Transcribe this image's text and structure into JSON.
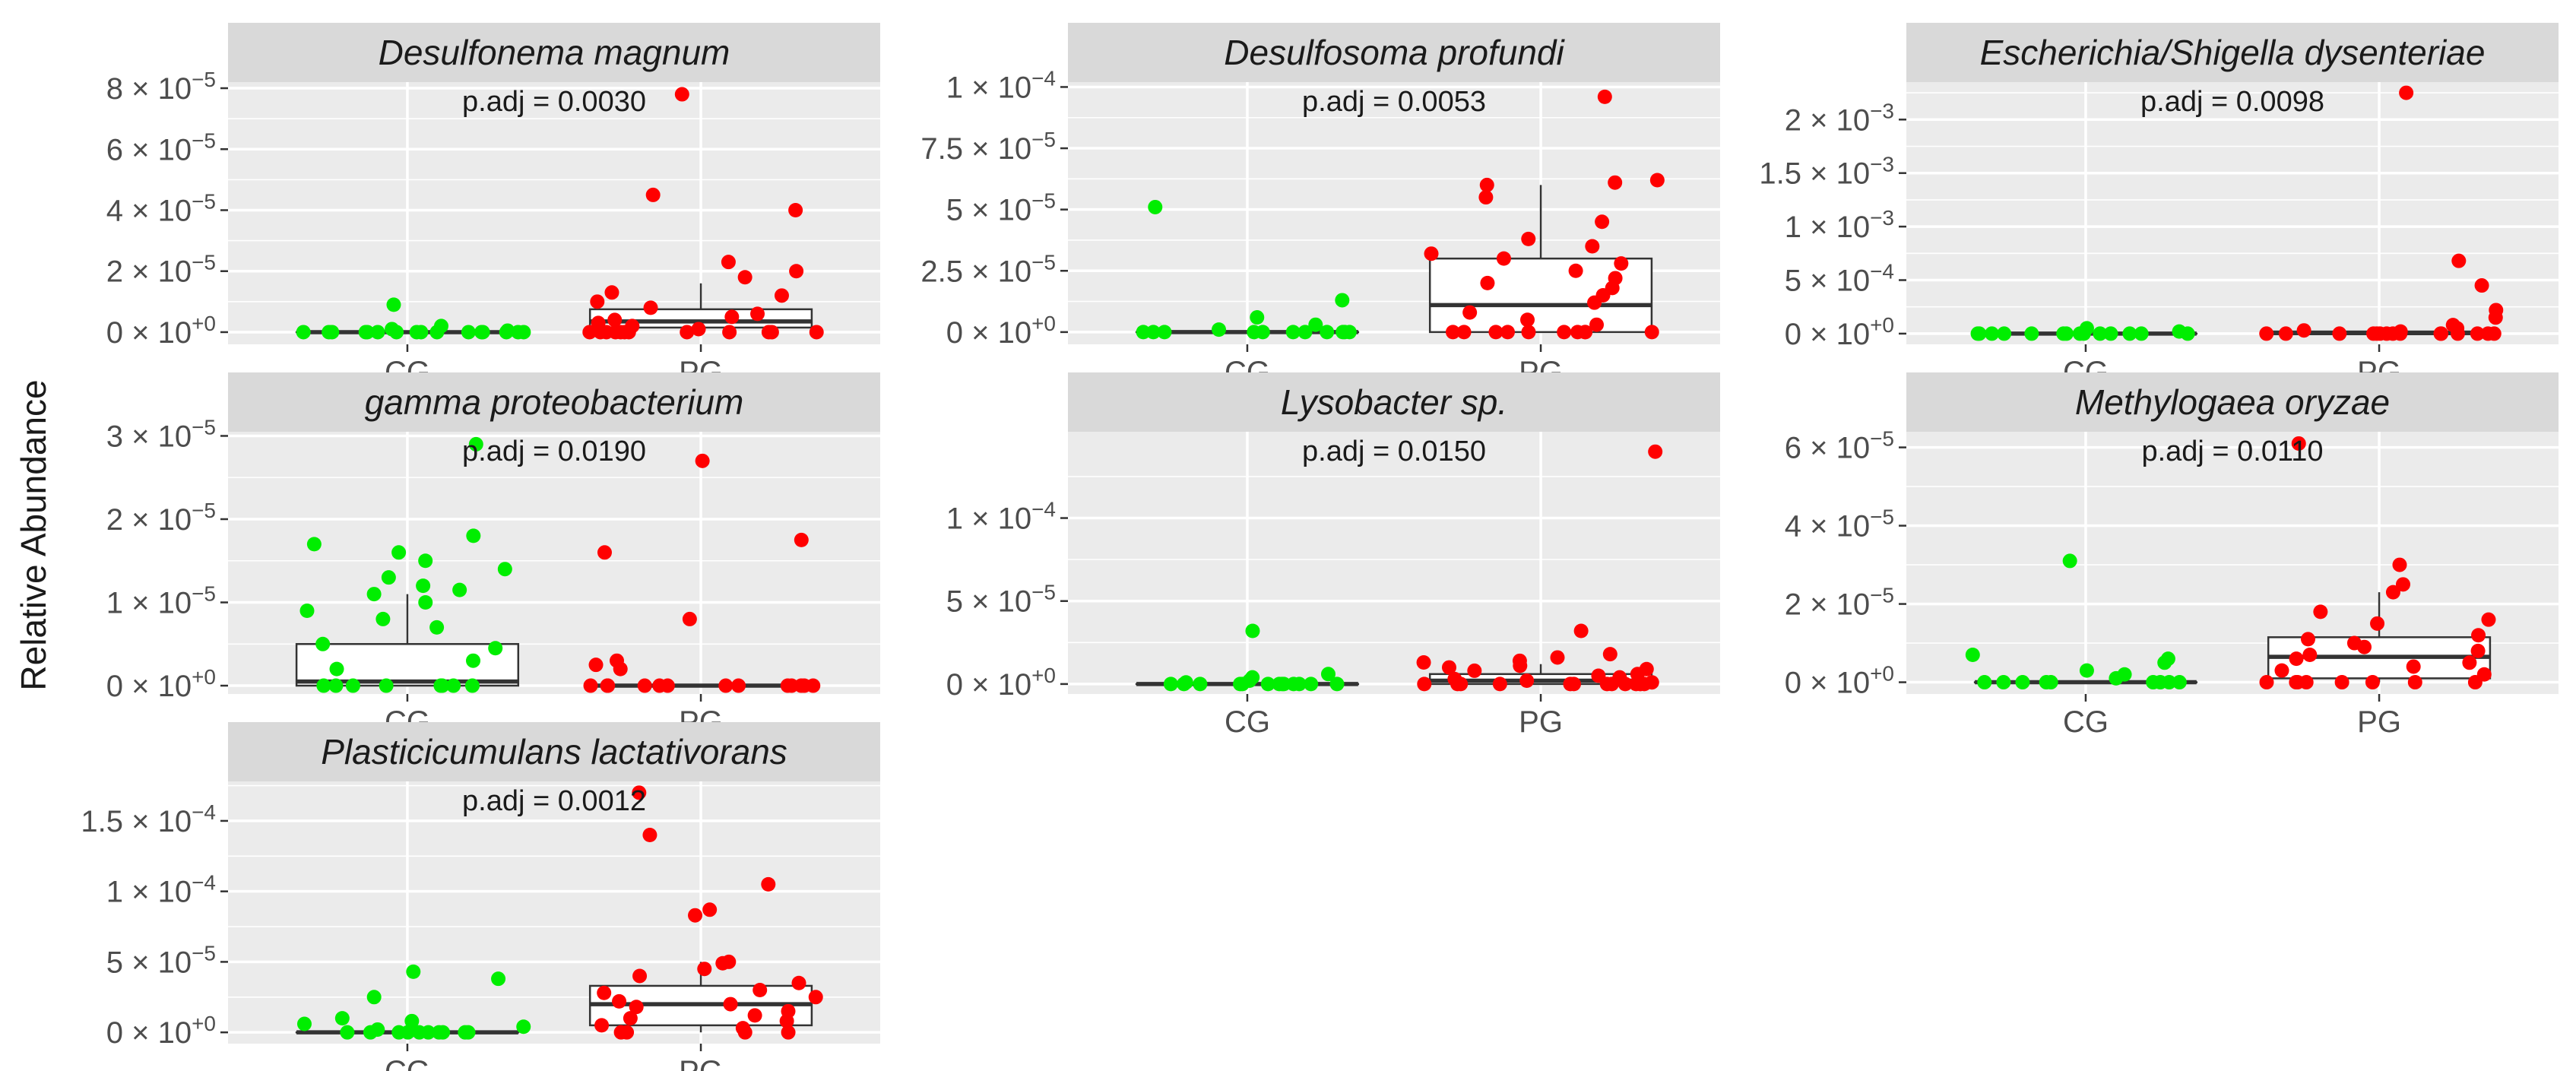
{
  "chart_data": {
    "type": "boxplot",
    "ylabel": "Relative Abundance",
    "categories": [
      "CG",
      "PG"
    ],
    "colors": {
      "CG": "#00ee00",
      "PG": "#ff0000",
      "panel_bg": "#ebebeb",
      "strip_bg": "#d9d9d9",
      "grid": "#ffffff"
    },
    "panels": [
      {
        "title": "Desulfonema magnum",
        "padj_text": "p.adj = 0.0030",
        "ylim": [
          -4e-06,
          8.2e-05
        ],
        "ticks": [
          {
            "v": 0,
            "m": "0",
            "e": "+0"
          },
          {
            "v": 2e-05,
            "m": "2",
            "e": "−5"
          },
          {
            "v": 4e-05,
            "m": "4",
            "e": "−5"
          },
          {
            "v": 6e-05,
            "m": "6",
            "e": "−5"
          },
          {
            "v": 8e-05,
            "m": "8",
            "e": "−5"
          }
        ],
        "boxes": {
          "CG": {
            "q1": 0,
            "median": 0,
            "q3": 0,
            "lo": 0,
            "hi": 0
          },
          "PG": {
            "q1": 1.5e-06,
            "median": 3.5e-06,
            "q3": 7.5e-06,
            "lo": 0,
            "hi": 1.6e-05
          }
        },
        "points": {
          "CG": [
            0,
            0,
            0,
            0,
            0,
            0,
            0,
            0,
            0,
            0,
            0,
            0,
            0,
            0,
            9e-06,
            5e-07,
            1e-06,
            2e-06,
            0,
            0
          ],
          "PG": [
            7.8e-05,
            4.5e-05,
            4e-05,
            2.3e-05,
            2e-05,
            1.8e-05,
            1.3e-05,
            1.2e-05,
            1e-05,
            8e-06,
            6e-06,
            5e-06,
            4e-06,
            3e-06,
            2e-06,
            1e-06,
            0,
            0,
            0,
            0,
            0,
            0,
            0,
            0,
            0,
            0,
            0,
            0
          ]
        }
      },
      {
        "title": "Desulfosoma profundi",
        "padj_text": "p.adj = 0.0053",
        "ylim": [
          -5e-06,
          0.000102
        ],
        "ticks": [
          {
            "v": 0,
            "m": "0",
            "e": "+0"
          },
          {
            "v": 2.5e-05,
            "m": "2.5",
            "e": "−5"
          },
          {
            "v": 5e-05,
            "m": "5",
            "e": "−5"
          },
          {
            "v": 7.5e-05,
            "m": "7.5",
            "e": "−5"
          },
          {
            "v": 0.0001,
            "m": "1",
            "e": "−4"
          }
        ],
        "boxes": {
          "CG": {
            "q1": 0,
            "median": 0,
            "q3": 0,
            "lo": 0,
            "hi": 0
          },
          "PG": {
            "q1": 0,
            "median": 1.1e-05,
            "q3": 3e-05,
            "lo": 0,
            "hi": 6e-05
          }
        },
        "points": {
          "CG": [
            5.1e-05,
            1.3e-05,
            6e-06,
            3e-06,
            1e-06,
            0,
            0,
            0,
            0,
            0,
            0,
            0,
            0,
            0,
            0,
            0
          ],
          "PG": [
            9.6e-05,
            6.2e-05,
            6.1e-05,
            6e-05,
            5.5e-05,
            4.5e-05,
            3.8e-05,
            3.5e-05,
            3.2e-05,
            3e-05,
            2.8e-05,
            2.5e-05,
            2.2e-05,
            2e-05,
            1.8e-05,
            1.5e-05,
            1.2e-05,
            8e-06,
            5e-06,
            3e-06,
            0,
            0,
            0,
            0,
            0,
            0,
            0,
            0,
            0,
            0
          ]
        }
      },
      {
        "title": "Escherichia/Shigella dysenteriae",
        "padj_text": "p.adj = 0.0098",
        "ylim": [
          -0.0001,
          0.00235
        ],
        "ticks": [
          {
            "v": 0,
            "m": "0",
            "e": "+0"
          },
          {
            "v": 0.0005,
            "m": "5",
            "e": "−4"
          },
          {
            "v": 0.001,
            "m": "1",
            "e": "−3"
          },
          {
            "v": 0.0015,
            "m": "1.5",
            "e": "−3"
          },
          {
            "v": 0.002,
            "m": "2",
            "e": "−3"
          }
        ],
        "boxes": {
          "CG": {
            "q1": 0,
            "median": 0,
            "q3": 0,
            "lo": 0,
            "hi": 0
          },
          "PG": {
            "q1": 0,
            "median": 5e-06,
            "q3": 2e-05,
            "lo": 0,
            "hi": 4e-05
          }
        },
        "points": {
          "CG": [
            5e-05,
            2e-05,
            0,
            0,
            0,
            0,
            0,
            0,
            0,
            0,
            0,
            0,
            0,
            0,
            0,
            0
          ],
          "PG": [
            0.00225,
            0.00068,
            0.00045,
            0.00022,
            0.00015,
            8e-05,
            5e-05,
            3e-05,
            2e-05,
            0,
            0,
            0,
            0,
            0,
            0,
            0,
            0,
            0,
            0,
            0,
            0,
            0,
            0,
            0
          ]
        }
      },
      {
        "title": "gamma proteobacterium",
        "padj_text": "p.adj = 0.0190",
        "ylim": [
          -1e-06,
          3.05e-05
        ],
        "ticks": [
          {
            "v": 0,
            "m": "0",
            "e": "+0"
          },
          {
            "v": 1e-05,
            "m": "1",
            "e": "−5"
          },
          {
            "v": 2e-05,
            "m": "2",
            "e": "−5"
          },
          {
            "v": 3e-05,
            "m": "3",
            "e": "−5"
          }
        ],
        "boxes": {
          "CG": {
            "q1": 0,
            "median": 5e-07,
            "q3": 5e-06,
            "lo": 0,
            "hi": 1.1e-05
          },
          "PG": {
            "q1": 0,
            "median": 0,
            "q3": 0,
            "lo": 0,
            "hi": 0
          }
        },
        "points": {
          "CG": [
            2.9e-05,
            1.8e-05,
            1.7e-05,
            1.6e-05,
            1.5e-05,
            1.4e-05,
            1.3e-05,
            1.2e-05,
            1.15e-05,
            1.1e-05,
            1e-05,
            9e-06,
            8e-06,
            7e-06,
            5e-06,
            4.5e-06,
            3e-06,
            2e-06,
            0,
            0,
            0,
            0,
            0,
            0,
            0,
            0
          ],
          "PG": [
            2.7e-05,
            1.75e-05,
            1.6e-05,
            8e-06,
            3e-06,
            2.5e-06,
            2e-06,
            0,
            0,
            0,
            0,
            0,
            0,
            0,
            0,
            0,
            0,
            0,
            0,
            0
          ]
        }
      },
      {
        "title": "Lysobacter sp.",
        "padj_text": "p.adj = 0.0150",
        "ylim": [
          -6e-06,
          0.000152
        ],
        "ticks": [
          {
            "v": 0,
            "m": "0",
            "e": "+0"
          },
          {
            "v": 5e-05,
            "m": "5",
            "e": "−5"
          },
          {
            "v": 0.0001,
            "m": "1",
            "e": "−4"
          }
        ],
        "boxes": {
          "CG": {
            "q1": 0,
            "median": 0,
            "q3": 0,
            "lo": 0,
            "hi": 0
          },
          "PG": {
            "q1": 0,
            "median": 2e-06,
            "q3": 6e-06,
            "lo": 0,
            "hi": 1.2e-05
          }
        },
        "points": {
          "CG": [
            3.2e-05,
            6e-06,
            4e-06,
            2e-06,
            1e-06,
            0,
            0,
            0,
            0,
            0,
            0,
            0,
            0,
            0,
            0,
            0,
            0,
            0
          ],
          "PG": [
            0.00014,
            3.2e-05,
            1.8e-05,
            1.6e-05,
            1.4e-05,
            1.3e-05,
            1.1e-05,
            1e-05,
            9e-06,
            8e-06,
            6e-06,
            5e-06,
            4e-06,
            3e-06,
            2e-06,
            1e-06,
            0,
            0,
            0,
            0,
            0,
            0,
            0,
            0,
            0,
            0,
            0,
            0
          ]
        }
      },
      {
        "title": "Methylogaea oryzae",
        "padj_text": "p.adj = 0.0110",
        "ylim": [
          -3e-06,
          6.4e-05
        ],
        "ticks": [
          {
            "v": 0,
            "m": "0",
            "e": "+0"
          },
          {
            "v": 2e-05,
            "m": "2",
            "e": "−5"
          },
          {
            "v": 4e-05,
            "m": "4",
            "e": "−5"
          },
          {
            "v": 6e-05,
            "m": "6",
            "e": "−5"
          }
        ],
        "boxes": {
          "CG": {
            "q1": 0,
            "median": 0,
            "q3": 0,
            "lo": 0,
            "hi": 0
          },
          "PG": {
            "q1": 1e-06,
            "median": 6.5e-06,
            "q3": 1.15e-05,
            "lo": 0,
            "hi": 2.3e-05
          }
        },
        "points": {
          "CG": [
            3.1e-05,
            7e-06,
            6e-06,
            5e-06,
            3e-06,
            2e-06,
            1e-06,
            0,
            0,
            0,
            0,
            0,
            0,
            0,
            0,
            0
          ],
          "PG": [
            6.1e-05,
            3e-05,
            2.5e-05,
            2.3e-05,
            1.8e-05,
            1.6e-05,
            1.5e-05,
            1.2e-05,
            1.1e-05,
            1e-05,
            9e-06,
            8e-06,
            7e-06,
            6e-06,
            5e-06,
            4e-06,
            3e-06,
            2e-06,
            0,
            0,
            0,
            0,
            0,
            0,
            0,
            0
          ]
        }
      },
      {
        "title": "Plasticicumulans lactativorans",
        "padj_text": "p.adj = 0.0012",
        "ylim": [
          -8e-06,
          0.000178
        ],
        "ticks": [
          {
            "v": 0,
            "m": "0",
            "e": "+0"
          },
          {
            "v": 5e-05,
            "m": "5",
            "e": "−5"
          },
          {
            "v": 0.0001,
            "m": "1",
            "e": "−4"
          },
          {
            "v": 0.00015,
            "m": "1.5",
            "e": "−4"
          }
        ],
        "boxes": {
          "CG": {
            "q1": 0,
            "median": 0,
            "q3": 0,
            "lo": 0,
            "hi": 0
          },
          "PG": {
            "q1": 5e-06,
            "median": 2e-05,
            "q3": 3.3e-05,
            "lo": 0,
            "hi": 5e-05
          }
        },
        "points": {
          "CG": [
            4.3e-05,
            3.8e-05,
            2.5e-05,
            1e-05,
            8e-06,
            6e-06,
            4e-06,
            2e-06,
            0,
            0,
            0,
            0,
            0,
            0,
            0,
            0,
            0,
            0
          ],
          "PG": [
            0.00017,
            0.00014,
            0.000105,
            8.7e-05,
            8.3e-05,
            5e-05,
            4.9e-05,
            4.5e-05,
            4e-05,
            3.5e-05,
            3e-05,
            2.8e-05,
            2.5e-05,
            2.2e-05,
            2e-05,
            1.8e-05,
            1.5e-05,
            1.2e-05,
            1e-05,
            8e-06,
            5e-06,
            3e-06,
            0,
            0,
            0,
            0
          ]
        }
      }
    ]
  }
}
